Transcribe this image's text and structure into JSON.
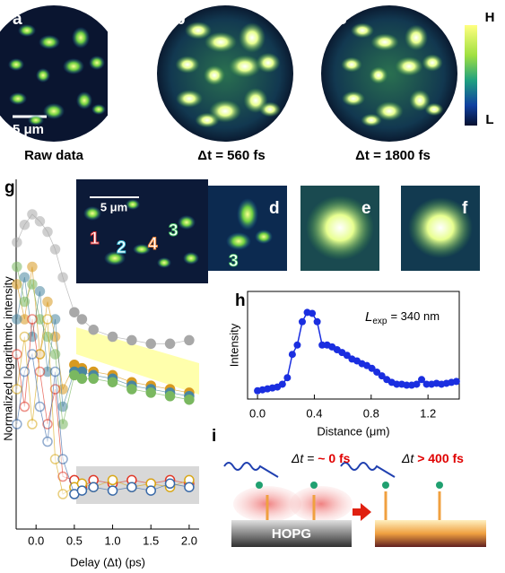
{
  "panels": {
    "a": {
      "label": "a",
      "caption": "Raw data",
      "scale_bar": "5 μm"
    },
    "b": {
      "label": "b",
      "caption": "Δt = 560 fs"
    },
    "c": {
      "label": "c",
      "caption": "Δt = 1800 fs"
    },
    "colorbar": {
      "high": "H",
      "low": "L"
    },
    "d": {
      "label": "d",
      "region": "3"
    },
    "e": {
      "label": "e"
    },
    "f": {
      "label": "f"
    },
    "i": {
      "label": "i",
      "left_prefix": "Δt =",
      "left_value": "~ 0 fs",
      "right_prefix": "Δt",
      "right_value": "> 400 fs",
      "substrate": "HOPG"
    }
  },
  "chart_data": [
    {
      "type": "scatter",
      "label": "g",
      "y_label": "Normalized logarithmic intensity",
      "x_label": "Delay (Δt) (ps)",
      "inset": {
        "scale_bar": "5 μm",
        "regions": [
          "1",
          "2",
          "4",
          "3"
        ]
      },
      "xlim": [
        -0.26,
        2.13
      ],
      "ylim": [
        0,
        1
      ],
      "xticks": [
        {
          "value": 0,
          "label": "0.0"
        },
        0.5,
        {
          "value": 1,
          "label": "1.0"
        },
        1.5,
        {
          "value": 2,
          "label": "2.0"
        }
      ],
      "x": [
        -0.25,
        -0.15,
        -0.05,
        0.05,
        0.15,
        0.25,
        0.35,
        0.5,
        0.6,
        0.75,
        1.0,
        1.25,
        1.5,
        1.75,
        2.0
      ],
      "series": [
        {
          "color": "#a8a8a8",
          "filled": true,
          "values": [
            0.82,
            0.87,
            0.9,
            0.88,
            0.85,
            0.8,
            0.72,
            0.62,
            0.6,
            0.57,
            0.55,
            0.54,
            0.53,
            0.53,
            0.54
          ]
        },
        {
          "color": "#d89a20",
          "filled": true,
          "values": [
            0.7,
            0.6,
            0.75,
            0.5,
            0.65,
            0.55,
            0.4,
            0.47,
            0.46,
            0.45,
            0.44,
            0.42,
            0.41,
            0.4,
            0.39
          ]
        },
        {
          "color": "#4a86a0",
          "filled": true,
          "values": [
            0.6,
            0.72,
            0.55,
            0.68,
            0.45,
            0.6,
            0.35,
            0.45,
            0.45,
            0.44,
            0.43,
            0.41,
            0.4,
            0.39,
            0.38
          ]
        },
        {
          "color": "#7ab860",
          "filled": true,
          "values": [
            0.75,
            0.65,
            0.7,
            0.6,
            0.55,
            0.5,
            0.3,
            0.44,
            0.43,
            0.43,
            0.42,
            0.4,
            0.39,
            0.38,
            0.37
          ]
        },
        {
          "color": "#e03828",
          "filled": false,
          "values": [
            0.5,
            0.35,
            0.6,
            0.45,
            0.3,
            0.4,
            0.15,
            0.14,
            0.12,
            0.14,
            0.13,
            0.14,
            0.13,
            0.14,
            0.13
          ]
        },
        {
          "color": "#d8a818",
          "filled": false,
          "values": [
            0.4,
            0.55,
            0.3,
            0.5,
            0.6,
            0.2,
            0.1,
            0.12,
            0.13,
            0.12,
            0.14,
            0.12,
            0.13,
            0.12,
            0.14
          ]
        },
        {
          "color": "#3a6aa8",
          "filled": false,
          "values": [
            0.3,
            0.45,
            0.5,
            0.35,
            0.25,
            0.45,
            0.2,
            0.1,
            0.11,
            0.12,
            0.11,
            0.12,
            0.11,
            0.13,
            0.12
          ]
        }
      ]
    },
    {
      "type": "line",
      "label": "h",
      "y_label": "Intensity",
      "x_label": "Distance (μm)",
      "annotation": {
        "symbol": "L",
        "subscript": "exp",
        "text": "= 340 nm"
      },
      "color": "#1a2ee0",
      "xlim": [
        -0.07,
        1.42
      ],
      "ylim": [
        0,
        1
      ],
      "xticks": [
        {
          "value": 0,
          "label": "0.0"
        },
        0.4,
        0.8,
        1.2
      ],
      "x": [
        0,
        0.035,
        0.07,
        0.105,
        0.14,
        0.175,
        0.21,
        0.245,
        0.28,
        0.315,
        0.35,
        0.385,
        0.42,
        0.455,
        0.49,
        0.525,
        0.56,
        0.595,
        0.63,
        0.665,
        0.7,
        0.735,
        0.77,
        0.805,
        0.84,
        0.875,
        0.91,
        0.945,
        0.98,
        1.015,
        1.05,
        1.085,
        1.12,
        1.155,
        1.19,
        1.225,
        1.26,
        1.295,
        1.33,
        1.365,
        1.4
      ],
      "values": [
        0.06,
        0.07,
        0.08,
        0.09,
        0.1,
        0.13,
        0.2,
        0.45,
        0.55,
        0.8,
        0.9,
        0.89,
        0.8,
        0.55,
        0.55,
        0.53,
        0.5,
        0.47,
        0.44,
        0.4,
        0.38,
        0.35,
        0.33,
        0.3,
        0.26,
        0.22,
        0.18,
        0.15,
        0.13,
        0.13,
        0.12,
        0.12,
        0.13,
        0.18,
        0.13,
        0.13,
        0.14,
        0.13,
        0.14,
        0.15,
        0.16
      ]
    }
  ]
}
